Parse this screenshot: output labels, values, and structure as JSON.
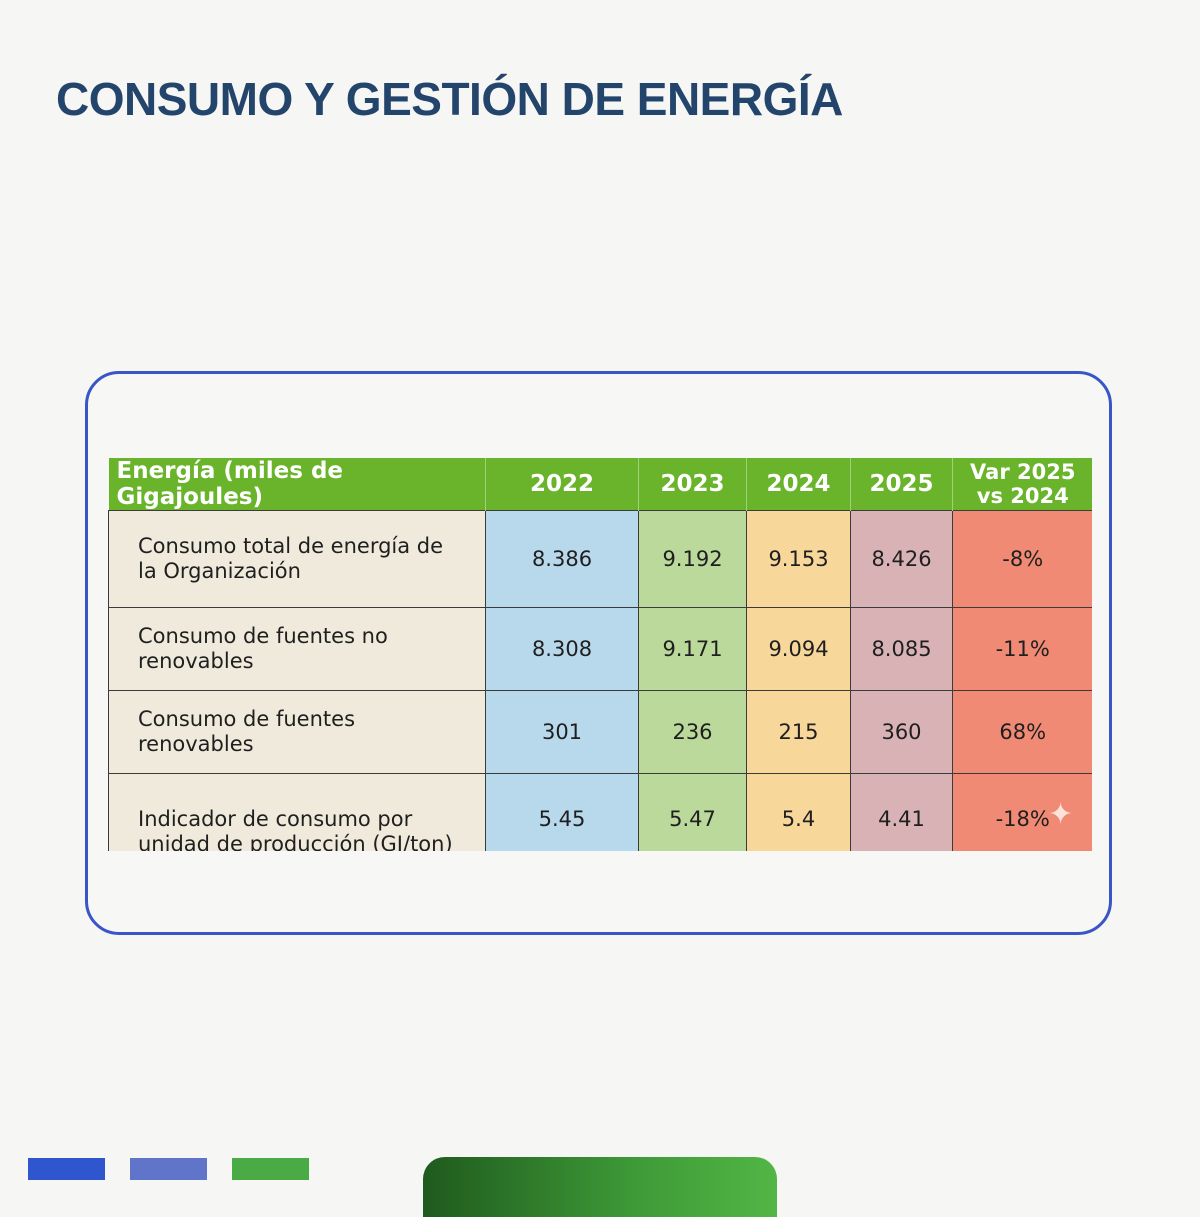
{
  "page": {
    "title": "CONSUMO Y GESTIÓN DE ENERGÍA"
  },
  "table": {
    "headers": [
      "Energía (miles de Gigajoules)",
      "2022",
      "2023",
      "2024",
      "2025",
      "Var 2025",
      "vs 2024"
    ],
    "rows": [
      {
        "label_lines": [
          "Consumo total de energía de",
          "la Organización"
        ],
        "values": [
          "8.386",
          "9.192",
          "9.153",
          "8.426",
          "-8%"
        ]
      },
      {
        "label_lines": [
          "Consumo de fuentes no",
          "renovables"
        ],
        "values": [
          "8.308",
          "9.171",
          "9.094",
          "8.085",
          "-11%"
        ]
      },
      {
        "label_lines": [
          "Consumo de fuentes",
          "renovables"
        ],
        "values": [
          "301",
          "236",
          "215",
          "360",
          "68%"
        ]
      },
      {
        "label_lines": [
          "Indicador de consumo por",
          "unidad de producción (GJ/ton)"
        ],
        "values": [
          "5.45",
          "5.47",
          "5.4",
          "4.41",
          "-18%"
        ]
      }
    ],
    "column_colors": {
      "header": "#6ab42c",
      "label": "#efeadc",
      "2022": "#b8d8ec",
      "2023": "#bad99b",
      "2024": "#f7d79a",
      "2025": "#d8b2b5",
      "var": "#f08a74"
    }
  },
  "decor": {
    "sparkle_icon": "sparkle-icon",
    "bar_colors": [
      "#2f55cf",
      "#6075c9",
      "#4aaa44"
    ],
    "tab_color": "#3e9a37"
  }
}
